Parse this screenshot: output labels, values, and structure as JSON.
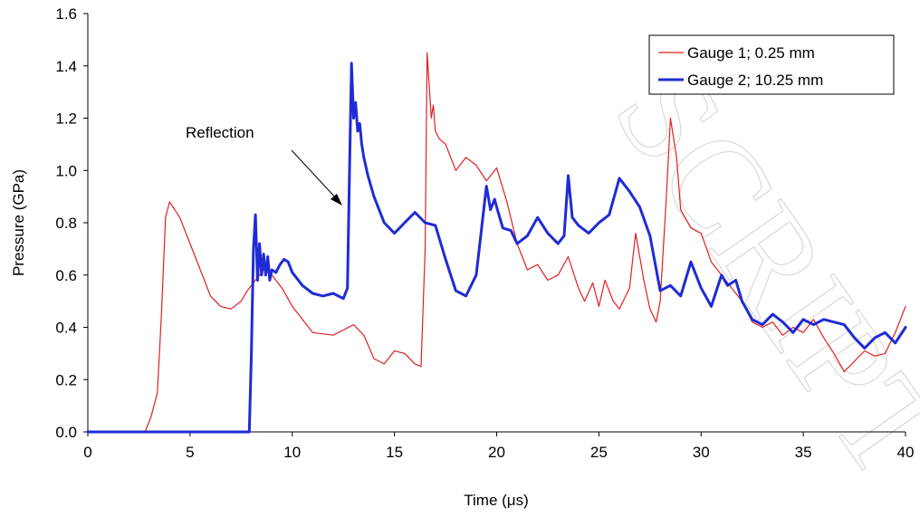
{
  "chart_data": {
    "type": "line",
    "title": "",
    "xlabel": "Time (μs)",
    "ylabel": "Pressure (GPa)",
    "xlim": [
      0,
      40
    ],
    "ylim": [
      0.0,
      1.6
    ],
    "xticks": [
      "0",
      "5",
      "10",
      "15",
      "20",
      "25",
      "30",
      "35",
      "40"
    ],
    "yticks": [
      "0.0",
      "0.2",
      "0.4",
      "0.6",
      "0.8",
      "1.0",
      "1.2",
      "1.4",
      "1.6"
    ],
    "grid": false,
    "legend_position": "top-right",
    "annotation": {
      "text": "Reflection",
      "x": 12.6,
      "y": 0.87
    },
    "watermark": "SCRIPT",
    "series": [
      {
        "name": "Gauge 1; 0.25 mm",
        "color": "#e02020",
        "line_width": 1.2,
        "x": [
          0,
          2.8,
          3.1,
          3.4,
          3.6,
          3.8,
          4.0,
          4.5,
          5.0,
          5.5,
          6.0,
          6.5,
          7.0,
          7.5,
          7.8,
          8.2,
          8.6,
          9.0,
          9.5,
          10.0,
          10.5,
          11.0,
          12.0,
          12.5,
          13.0,
          13.5,
          14.0,
          14.5,
          15.0,
          15.5,
          16.0,
          16.3,
          16.5,
          16.6,
          16.8,
          16.9,
          17.0,
          17.2,
          17.5,
          18.0,
          18.5,
          19.0,
          19.5,
          20.0,
          20.5,
          21.0,
          21.5,
          22.0,
          22.5,
          23.0,
          23.5,
          24.0,
          24.3,
          24.7,
          25.0,
          25.3,
          25.7,
          26.0,
          26.5,
          26.8,
          27.2,
          27.5,
          27.8,
          28.0,
          28.3,
          28.5,
          28.8,
          29.0,
          29.5,
          30.0,
          30.5,
          31.0,
          31.5,
          32.0,
          32.5,
          33.0,
          33.5,
          34.0,
          34.5,
          35.0,
          35.5,
          36.0,
          36.5,
          37.0,
          37.5,
          38.0,
          38.5,
          39.0,
          39.5,
          40.0
        ],
        "y": [
          0.0,
          0.0,
          0.06,
          0.15,
          0.45,
          0.82,
          0.88,
          0.82,
          0.72,
          0.62,
          0.52,
          0.48,
          0.47,
          0.5,
          0.54,
          0.58,
          0.62,
          0.6,
          0.55,
          0.48,
          0.43,
          0.38,
          0.37,
          0.39,
          0.41,
          0.37,
          0.28,
          0.26,
          0.31,
          0.3,
          0.26,
          0.25,
          0.7,
          1.45,
          1.2,
          1.25,
          1.15,
          1.12,
          1.1,
          1.0,
          1.05,
          1.02,
          0.96,
          1.01,
          0.88,
          0.72,
          0.62,
          0.64,
          0.58,
          0.6,
          0.67,
          0.55,
          0.5,
          0.57,
          0.48,
          0.58,
          0.5,
          0.47,
          0.55,
          0.76,
          0.58,
          0.47,
          0.42,
          0.5,
          0.9,
          1.2,
          1.05,
          0.85,
          0.78,
          0.76,
          0.65,
          0.6,
          0.55,
          0.5,
          0.42,
          0.4,
          0.42,
          0.37,
          0.4,
          0.38,
          0.43,
          0.36,
          0.3,
          0.23,
          0.27,
          0.31,
          0.29,
          0.3,
          0.38,
          0.48
        ]
      },
      {
        "name": "Gauge 2; 10.25 mm",
        "color": "#1f2bd6",
        "line_width": 3,
        "x": [
          0,
          7.9,
          8.0,
          8.1,
          8.2,
          8.3,
          8.4,
          8.5,
          8.6,
          8.7,
          8.8,
          8.9,
          9.0,
          9.2,
          9.4,
          9.6,
          9.8,
          10.0,
          10.5,
          11.0,
          11.5,
          12.0,
          12.5,
          12.7,
          12.8,
          12.9,
          13.0,
          13.1,
          13.2,
          13.3,
          13.4,
          13.5,
          13.7,
          14.0,
          14.5,
          15.0,
          15.5,
          16.0,
          16.5,
          17.0,
          17.5,
          18.0,
          18.5,
          19.0,
          19.5,
          19.7,
          19.9,
          20.0,
          20.3,
          20.7,
          21.0,
          21.5,
          22.0,
          22.5,
          23.0,
          23.3,
          23.5,
          23.7,
          24.0,
          24.5,
          25.0,
          25.5,
          26.0,
          26.5,
          27.0,
          27.5,
          28.0,
          28.5,
          29.0,
          29.5,
          30.0,
          30.5,
          31.0,
          31.3,
          31.7,
          32.0,
          32.5,
          33.0,
          33.5,
          34.0,
          34.5,
          35.0,
          35.5,
          36.0,
          36.5,
          37.0,
          37.5,
          38.0,
          38.5,
          39.0,
          39.5,
          40.0
        ],
        "y": [
          0.0,
          0.0,
          0.3,
          0.7,
          0.83,
          0.58,
          0.72,
          0.6,
          0.68,
          0.6,
          0.67,
          0.58,
          0.62,
          0.61,
          0.64,
          0.66,
          0.65,
          0.61,
          0.56,
          0.53,
          0.52,
          0.53,
          0.51,
          0.55,
          1.0,
          1.41,
          1.2,
          1.26,
          1.15,
          1.18,
          1.1,
          1.05,
          0.98,
          0.9,
          0.8,
          0.76,
          0.8,
          0.84,
          0.8,
          0.79,
          0.66,
          0.54,
          0.52,
          0.6,
          0.94,
          0.85,
          0.89,
          0.86,
          0.78,
          0.77,
          0.72,
          0.75,
          0.82,
          0.76,
          0.72,
          0.75,
          0.98,
          0.82,
          0.79,
          0.76,
          0.8,
          0.83,
          0.97,
          0.92,
          0.86,
          0.75,
          0.54,
          0.56,
          0.52,
          0.65,
          0.55,
          0.48,
          0.6,
          0.56,
          0.58,
          0.5,
          0.43,
          0.41,
          0.45,
          0.42,
          0.38,
          0.43,
          0.41,
          0.43,
          0.42,
          0.41,
          0.36,
          0.32,
          0.36,
          0.38,
          0.34,
          0.4
        ]
      }
    ]
  }
}
